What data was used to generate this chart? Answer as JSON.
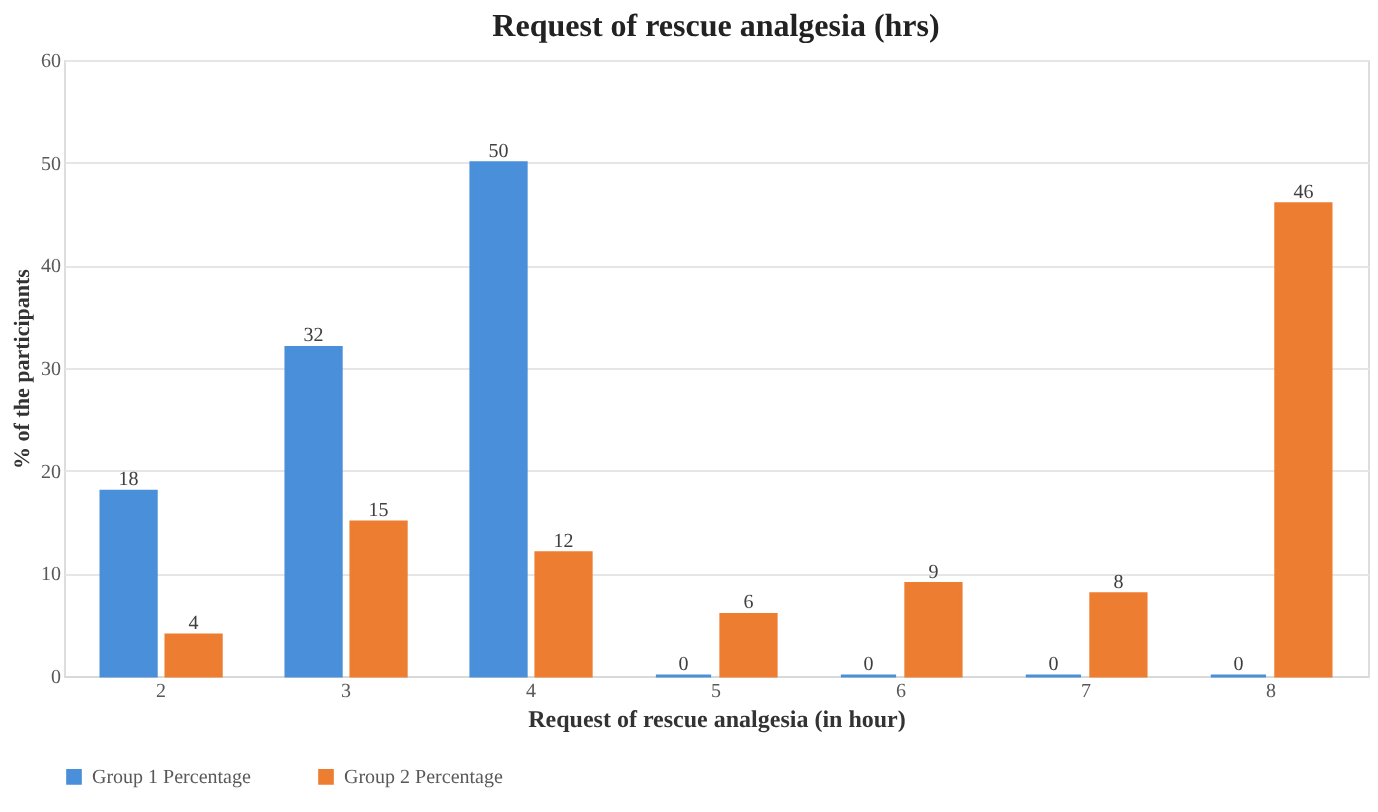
{
  "chart_data": {
    "type": "bar",
    "title": "Request of rescue analgesia (hrs)",
    "xlabel": "Request of rescue analgesia (in hour)",
    "ylabel": "% of the participants",
    "categories": [
      "2",
      "3",
      "4",
      "5",
      "6",
      "7",
      "8"
    ],
    "series": [
      {
        "name": "Group 1 Percentage",
        "color": "#4a8fd9",
        "values": [
          18,
          32,
          50,
          0,
          0,
          0,
          0
        ]
      },
      {
        "name": "Group 2 Percentage",
        "color": "#ed7d31",
        "values": [
          4,
          15,
          12,
          6,
          9,
          8,
          46
        ]
      }
    ],
    "ylim": [
      0,
      60
    ],
    "yticks": [
      0,
      10,
      20,
      30,
      40,
      50,
      60
    ],
    "grid": "y",
    "legend": "bottom",
    "data_labels": true
  }
}
